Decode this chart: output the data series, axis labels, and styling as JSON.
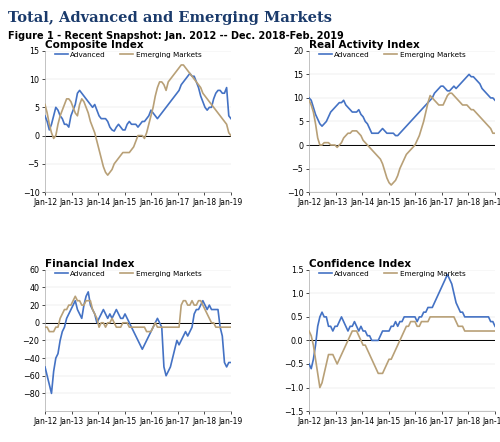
{
  "title": "Total, Advanced and Emerging Markets",
  "subtitle": "Figure 1 - Recent Snapshot: Jan. 2012 -- Dec. 2018-Feb. 2019",
  "title_color": "#1a3a6b",
  "subtitle_color": "#000000",
  "x_labels": [
    "Jan-12",
    "Jan-13",
    "Jan-14",
    "Jan-15",
    "Jan-16",
    "Jan-17",
    "Jan-18",
    "Jan-19"
  ],
  "advanced_color": "#4472c4",
  "emerging_color": "#b8a077",
  "line_width": 1.2,
  "subplots": [
    {
      "title": "Composite Index",
      "ylim": [
        -10,
        15
      ],
      "yticks": [
        -10,
        -5,
        0,
        5,
        10,
        15
      ],
      "advanced": [
        3.5,
        2.5,
        1.0,
        2.0,
        3.5,
        5.0,
        4.5,
        3.5,
        3.0,
        2.0,
        2.0,
        1.5,
        3.5,
        4.5,
        5.5,
        7.5,
        8.0,
        7.5,
        7.0,
        6.5,
        6.0,
        5.5,
        5.0,
        5.5,
        4.5,
        3.5,
        3.0,
        3.0,
        3.0,
        2.5,
        1.5,
        1.0,
        0.8,
        1.5,
        2.0,
        1.5,
        1.0,
        1.0,
        2.0,
        2.5,
        2.0,
        2.0,
        2.0,
        1.5,
        2.0,
        2.5,
        2.5,
        3.0,
        3.5,
        4.5,
        4.0,
        3.5,
        3.0,
        3.5,
        4.0,
        4.5,
        5.0,
        5.5,
        6.0,
        6.5,
        7.0,
        7.5,
        8.0,
        9.0,
        9.5,
        10.0,
        10.5,
        11.0,
        10.5,
        10.5,
        9.5,
        8.5,
        7.0,
        6.0,
        5.0,
        4.5,
        5.0,
        5.0,
        6.5,
        7.5,
        8.0,
        8.0,
        7.5,
        7.5,
        8.5,
        3.5,
        3.0
      ],
      "emerging": [
        5.5,
        4.0,
        2.0,
        0.5,
        -0.5,
        0.0,
        2.0,
        3.5,
        4.5,
        5.5,
        6.5,
        6.5,
        6.0,
        5.0,
        4.0,
        3.5,
        5.5,
        6.5,
        6.0,
        5.0,
        4.0,
        2.5,
        1.5,
        0.5,
        -1.0,
        -2.5,
        -4.0,
        -5.5,
        -6.5,
        -7.0,
        -6.5,
        -6.0,
        -5.0,
        -4.5,
        -4.0,
        -3.5,
        -3.0,
        -3.0,
        -3.0,
        -3.0,
        -2.5,
        -2.0,
        -1.0,
        0.0,
        0.0,
        0.0,
        -0.5,
        0.5,
        2.0,
        3.5,
        5.0,
        7.0,
        8.5,
        9.5,
        9.5,
        9.0,
        8.0,
        9.5,
        10.0,
        10.5,
        11.0,
        11.5,
        12.0,
        12.5,
        12.5,
        12.0,
        11.5,
        11.0,
        10.5,
        10.0,
        9.5,
        9.0,
        8.5,
        7.5,
        7.0,
        6.5,
        6.0,
        5.5,
        5.0,
        4.5,
        4.0,
        3.5,
        3.0,
        2.5,
        2.0,
        0.5,
        0.0
      ]
    },
    {
      "title": "Real Activity Index",
      "ylim": [
        -10,
        20
      ],
      "yticks": [
        -10,
        -5,
        0,
        5,
        10,
        15,
        20
      ],
      "advanced": [
        10.0,
        9.5,
        8.0,
        6.5,
        5.5,
        4.5,
        4.0,
        4.5,
        5.0,
        6.0,
        7.0,
        7.5,
        8.0,
        8.5,
        9.0,
        9.0,
        9.5,
        8.5,
        8.0,
        7.5,
        7.0,
        7.0,
        7.0,
        7.5,
        6.5,
        6.0,
        5.0,
        4.5,
        3.5,
        2.5,
        2.5,
        2.5,
        2.5,
        3.0,
        3.5,
        3.0,
        2.5,
        2.5,
        2.5,
        2.5,
        2.0,
        2.0,
        2.5,
        3.0,
        3.5,
        4.0,
        4.5,
        5.0,
        5.5,
        6.0,
        6.5,
        7.0,
        7.5,
        8.0,
        8.5,
        9.0,
        9.5,
        10.0,
        11.0,
        11.5,
        12.0,
        12.5,
        12.5,
        12.0,
        11.5,
        11.5,
        12.0,
        12.5,
        12.0,
        12.5,
        13.0,
        13.5,
        14.0,
        14.5,
        15.0,
        14.5,
        14.5,
        14.0,
        13.5,
        13.0,
        12.0,
        11.5,
        11.0,
        10.5,
        10.0,
        10.0,
        9.5
      ],
      "emerging": [
        9.5,
        8.5,
        7.0,
        4.5,
        1.5,
        0.0,
        0.0,
        0.5,
        0.5,
        0.5,
        0.0,
        0.0,
        0.0,
        -0.5,
        0.0,
        0.5,
        1.5,
        2.0,
        2.5,
        2.5,
        3.0,
        3.0,
        3.0,
        2.5,
        2.0,
        1.0,
        0.5,
        0.0,
        -0.5,
        -1.0,
        -1.5,
        -2.0,
        -2.5,
        -3.0,
        -4.0,
        -5.5,
        -7.0,
        -8.0,
        -8.5,
        -8.0,
        -7.5,
        -6.5,
        -5.0,
        -4.0,
        -3.0,
        -2.0,
        -1.5,
        -1.0,
        -0.5,
        0.0,
        1.0,
        2.0,
        3.5,
        5.0,
        7.0,
        9.0,
        10.5,
        10.0,
        9.5,
        9.0,
        8.5,
        8.5,
        8.5,
        9.5,
        10.5,
        11.0,
        11.0,
        10.5,
        10.0,
        9.5,
        9.0,
        8.5,
        8.5,
        8.5,
        8.0,
        7.5,
        7.5,
        7.0,
        6.5,
        6.0,
        5.5,
        5.0,
        4.5,
        4.0,
        3.5,
        2.5,
        2.5
      ]
    },
    {
      "title": "Financial Index",
      "ylim": [
        -100,
        60
      ],
      "yticks": [
        -80,
        -60,
        -40,
        -20,
        0,
        20,
        40,
        60
      ],
      "advanced": [
        -50.0,
        -60.0,
        -70.0,
        -80.0,
        -55.0,
        -40.0,
        -35.0,
        -20.0,
        -10.0,
        -5.0,
        5.0,
        10.0,
        15.0,
        20.0,
        25.0,
        15.0,
        10.0,
        5.0,
        20.0,
        30.0,
        35.0,
        20.0,
        15.0,
        10.0,
        0.0,
        5.0,
        10.0,
        15.0,
        10.0,
        5.0,
        10.0,
        5.0,
        10.0,
        15.0,
        10.0,
        5.0,
        5.0,
        10.0,
        5.0,
        0.0,
        -5.0,
        -10.0,
        -15.0,
        -20.0,
        -25.0,
        -30.0,
        -25.0,
        -20.0,
        -15.0,
        -10.0,
        -5.0,
        0.0,
        5.0,
        0.0,
        -5.0,
        -50.0,
        -60.0,
        -55.0,
        -50.0,
        -40.0,
        -30.0,
        -20.0,
        -25.0,
        -20.0,
        -15.0,
        -10.0,
        -15.0,
        -10.0,
        -5.0,
        10.0,
        15.0,
        15.0,
        20.0,
        25.0,
        20.0,
        15.0,
        20.0,
        15.0,
        15.0,
        15.0,
        15.0,
        -5.0,
        -15.0,
        -45.0,
        -50.0,
        -45.0,
        -45.0
      ],
      "emerging": [
        -5.0,
        -5.0,
        -10.0,
        -10.0,
        -10.0,
        -5.0,
        -5.0,
        5.0,
        10.0,
        15.0,
        15.0,
        20.0,
        20.0,
        25.0,
        30.0,
        25.0,
        25.0,
        20.0,
        20.0,
        25.0,
        25.0,
        25.0,
        15.0,
        10.0,
        5.0,
        -5.0,
        0.0,
        0.0,
        -5.0,
        0.0,
        0.0,
        5.0,
        0.0,
        -5.0,
        -5.0,
        -5.0,
        0.0,
        0.0,
        0.0,
        -5.0,
        -5.0,
        -5.0,
        -5.0,
        -5.0,
        -5.0,
        -5.0,
        -5.0,
        -10.0,
        -10.0,
        -10.0,
        -5.0,
        0.0,
        -5.0,
        -5.0,
        -5.0,
        -5.0,
        -5.0,
        -5.0,
        -5.0,
        -5.0,
        -5.0,
        -5.0,
        -5.0,
        20.0,
        25.0,
        25.0,
        20.0,
        20.0,
        25.0,
        20.0,
        20.0,
        25.0,
        25.0,
        20.0,
        15.0,
        10.0,
        5.0,
        0.0,
        0.0,
        -5.0,
        -5.0,
        -5.0,
        -5.0,
        -5.0,
        -5.0,
        -5.0,
        -5.0
      ]
    },
    {
      "title": "Confidence Index",
      "ylim": [
        -1.5,
        1.5
      ],
      "yticks": [
        -1.5,
        -1.0,
        -0.5,
        0.0,
        0.5,
        1.0,
        1.5
      ],
      "advanced": [
        -0.5,
        -0.6,
        -0.4,
        -0.1,
        0.3,
        0.5,
        0.6,
        0.5,
        0.5,
        0.3,
        0.3,
        0.2,
        0.3,
        0.3,
        0.4,
        0.5,
        0.4,
        0.3,
        0.2,
        0.3,
        0.3,
        0.4,
        0.3,
        0.2,
        0.3,
        0.2,
        0.2,
        0.1,
        0.1,
        0.0,
        0.0,
        0.0,
        0.0,
        0.1,
        0.2,
        0.2,
        0.2,
        0.2,
        0.3,
        0.3,
        0.4,
        0.3,
        0.4,
        0.4,
        0.5,
        0.5,
        0.5,
        0.5,
        0.5,
        0.5,
        0.4,
        0.5,
        0.5,
        0.6,
        0.6,
        0.7,
        0.7,
        0.7,
        0.8,
        0.9,
        1.0,
        1.1,
        1.2,
        1.3,
        1.4,
        1.3,
        1.2,
        1.0,
        0.8,
        0.7,
        0.6,
        0.6,
        0.5,
        0.5,
        0.5,
        0.5,
        0.5,
        0.5,
        0.5,
        0.5,
        0.5,
        0.5,
        0.5,
        0.5,
        0.4,
        0.4,
        0.3
      ],
      "emerging": [
        0.2,
        0.1,
        -0.1,
        -0.4,
        -0.7,
        -1.0,
        -0.9,
        -0.7,
        -0.5,
        -0.3,
        -0.3,
        -0.3,
        -0.4,
        -0.5,
        -0.4,
        -0.3,
        -0.2,
        -0.1,
        0.0,
        0.1,
        0.2,
        0.2,
        0.2,
        0.1,
        0.0,
        -0.1,
        -0.1,
        -0.2,
        -0.3,
        -0.4,
        -0.5,
        -0.6,
        -0.7,
        -0.7,
        -0.7,
        -0.6,
        -0.5,
        -0.4,
        -0.4,
        -0.3,
        -0.2,
        -0.1,
        0.0,
        0.1,
        0.2,
        0.3,
        0.3,
        0.4,
        0.4,
        0.4,
        0.3,
        0.3,
        0.4,
        0.4,
        0.4,
        0.4,
        0.5,
        0.5,
        0.5,
        0.5,
        0.5,
        0.5,
        0.5,
        0.5,
        0.5,
        0.5,
        0.5,
        0.5,
        0.4,
        0.3,
        0.3,
        0.3,
        0.2,
        0.2,
        0.2,
        0.2,
        0.2,
        0.2,
        0.2,
        0.2,
        0.2,
        0.2,
        0.2,
        0.2,
        0.2,
        0.2,
        0.2
      ]
    }
  ]
}
